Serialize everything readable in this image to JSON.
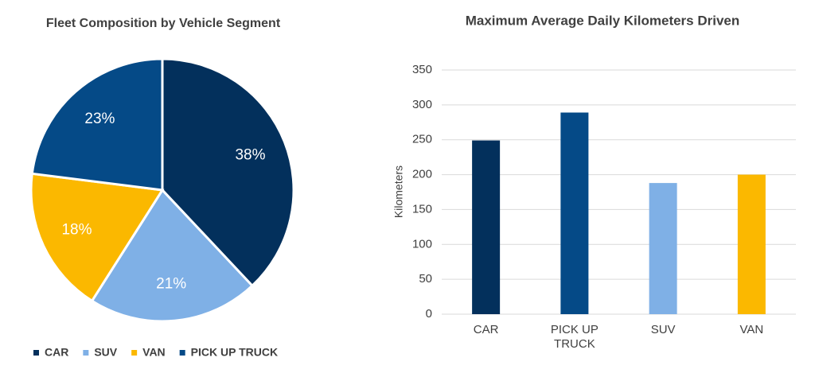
{
  "chart_data": [
    {
      "type": "pie",
      "title": "Fleet Composition by Vehicle Segment",
      "categories": [
        "CAR",
        "SUV",
        "VAN",
        "PICK UP TRUCK"
      ],
      "values": [
        38,
        21,
        18,
        23
      ],
      "value_labels": [
        "38%",
        "21%",
        "18%",
        "23%"
      ],
      "colors": [
        "#03305c",
        "#7fb0e6",
        "#fbb800",
        "#054a87"
      ],
      "legend": "bottom"
    },
    {
      "type": "bar",
      "title": "Maximum Average Daily Kilometers Driven",
      "categories": [
        "CAR",
        "PICK UP TRUCK",
        "SUV",
        "VAN"
      ],
      "values": [
        249,
        289,
        188,
        200
      ],
      "colors": [
        "#03305c",
        "#054a87",
        "#7fb0e6",
        "#fbb800"
      ],
      "ylabel": "Kilometers",
      "ylim": [
        0,
        350
      ],
      "yticks": [
        0,
        50,
        100,
        150,
        200,
        250,
        300,
        350
      ],
      "grid": true
    }
  ]
}
